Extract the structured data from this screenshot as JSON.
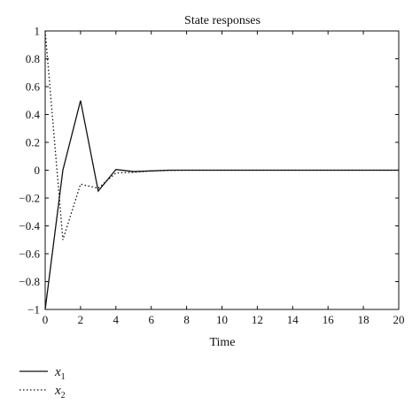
{
  "chart_data": {
    "type": "line",
    "title": "State responses",
    "xlabel": "Time",
    "ylabel": "",
    "xlim": [
      0,
      20
    ],
    "ylim": [
      -1,
      1
    ],
    "xticks": [
      0,
      2,
      4,
      6,
      8,
      10,
      12,
      14,
      16,
      18,
      20
    ],
    "yticks": [
      -1,
      -0.8,
      -0.6,
      -0.4,
      -0.2,
      0,
      0.2,
      0.4,
      0.6,
      0.8,
      1
    ],
    "xtick_labels": [
      "0",
      "2",
      "4",
      "6",
      "8",
      "10",
      "12",
      "14",
      "16",
      "18",
      "20"
    ],
    "ytick_labels": [
      "−1",
      "−0.8",
      "−0.6",
      "−0.4",
      "−0.2",
      "0",
      "0.2",
      "0.4",
      "0.6",
      "0.8",
      "1"
    ],
    "grid": false,
    "legend_position": "bottom-left, below plot",
    "series": [
      {
        "name": "x",
        "subscript": "1",
        "line_style": "solid",
        "color": "#111111",
        "x": [
          0,
          1,
          2,
          3,
          4,
          5,
          6,
          7,
          8,
          9,
          10,
          11,
          12,
          13,
          14,
          15,
          16,
          17,
          18,
          19,
          20
        ],
        "values": [
          -1,
          0,
          0.5,
          -0.15,
          0.005,
          -0.01,
          -0.005,
          0,
          0,
          0,
          0,
          0,
          0,
          0,
          0,
          0,
          0,
          0,
          0,
          0,
          0
        ]
      },
      {
        "name": "x",
        "subscript": "2",
        "line_style": "dotted",
        "color": "#111111",
        "x": [
          0,
          1,
          2,
          3,
          4,
          5,
          6,
          7,
          8,
          9,
          10,
          11,
          12,
          13,
          14,
          15,
          16,
          17,
          18,
          19,
          20
        ],
        "values": [
          1,
          -0.5,
          -0.1,
          -0.13,
          -0.02,
          -0.015,
          -0.005,
          -0.002,
          0,
          0,
          0,
          0,
          0,
          0,
          0,
          0,
          0,
          0,
          0,
          0,
          0
        ]
      }
    ]
  }
}
